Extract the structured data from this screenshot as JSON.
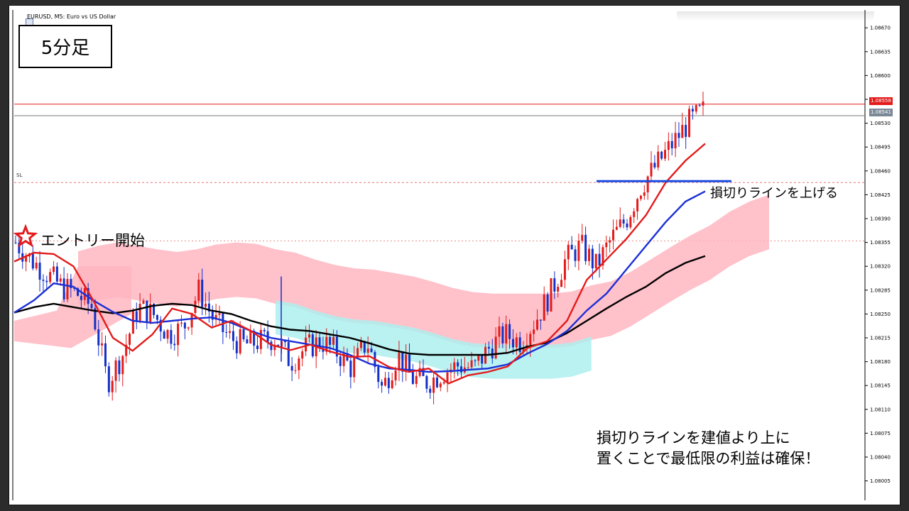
{
  "symbol_label": "EURUSD, M5:  Euro vs US Dollar",
  "timeframe_label": "5分足",
  "annotations": {
    "entry": "エントリー開始",
    "raise_stop": "損切りラインを上げる",
    "bottom_line1": "損切りラインを建値より上に",
    "bottom_line2": "置くことで最低限の利益は確保！"
  },
  "sl_label": "SL",
  "price_tags": {
    "ask": "1.08558",
    "bid": "1.08541"
  },
  "chart_data": {
    "type": "candlestick",
    "y_axis": {
      "ticks": [
        "1.08670",
        "1.08635",
        "1.08600",
        "1.08565",
        "1.08530",
        "1.08495",
        "1.08460",
        "1.08425",
        "1.08390",
        "1.08355",
        "1.08320",
        "1.08285",
        "1.08250",
        "1.08215",
        "1.08180",
        "1.08145",
        "1.08110",
        "1.08075",
        "1.08040",
        "1.08005"
      ],
      "ylim": [
        1.0799,
        1.0869
      ]
    },
    "levels": {
      "ask_line": 1.08558,
      "bid_line": 1.08541,
      "sl_line": 1.08443,
      "entry_line": 1.08357,
      "moved_stop": 1.08445
    },
    "colors": {
      "bull": "#e31b1b",
      "bear": "#1330c8",
      "ma_fast": "#e31b1b",
      "ma_mid": "#1a2fd6",
      "ma_slow": "#000000",
      "cloud_up": "#ffb6c1",
      "cloud_down": "#aeeeee",
      "stop_line": "#1a4be0"
    },
    "ma_fast": [
      1.08327,
      1.0834,
      1.08338,
      1.0832,
      1.0827,
      1.08215,
      1.08196,
      1.0822,
      1.08258,
      1.0825,
      1.0823,
      1.0824,
      1.08225,
      1.08205,
      1.08197,
      1.08205,
      1.08195,
      1.08187,
      1.08188,
      1.08172,
      1.08165,
      1.0817,
      1.08148,
      1.0816,
      1.08165,
      1.08173,
      1.082,
      1.0821,
      1.0824,
      1.083,
      1.0833,
      1.0836,
      1.08395,
      1.08443,
      1.08475,
      1.085
    ],
    "ma_mid": [
      1.08252,
      1.0827,
      1.08295,
      1.0829,
      1.0827,
      1.08253,
      1.0824,
      1.08237,
      1.0824,
      1.08243,
      1.08245,
      1.08237,
      1.08225,
      1.08215,
      1.0821,
      1.08205,
      1.082,
      1.0819,
      1.08177,
      1.0817,
      1.08168,
      1.08165,
      1.08166,
      1.08168,
      1.0817,
      1.08176,
      1.08192,
      1.08206,
      1.08225,
      1.08255,
      1.0828,
      1.08315,
      1.0835,
      1.08385,
      1.08415,
      1.0843
    ],
    "ma_slow": [
      1.08252,
      1.0826,
      1.08265,
      1.0826,
      1.08255,
      1.08251,
      1.08255,
      1.08262,
      1.08265,
      1.08263,
      1.08255,
      1.0825,
      1.0824,
      1.08232,
      1.08227,
      1.08225,
      1.0822,
      1.08215,
      1.08207,
      1.08198,
      1.08192,
      1.0819,
      1.0819,
      1.0819,
      1.0819,
      1.08193,
      1.08202,
      1.08208,
      1.08222,
      1.0824,
      1.08258,
      1.08275,
      1.0829,
      1.0831,
      1.08325,
      1.08335
    ],
    "price_path": [
      1.08355,
      1.0833,
      1.0831,
      1.0829,
      1.0828,
      1.0826,
      1.0815,
      1.0819,
      1.0826,
      1.0825,
      1.0822,
      1.0823,
      1.08285,
      1.0824,
      1.08215,
      1.08205,
      1.0821,
      1.08215,
      1.0818,
      1.082,
      1.0821,
      1.08195,
      1.0817,
      1.0821,
      1.0814,
      1.0819,
      1.08155,
      1.0815,
      1.08165,
      1.08175,
      1.0817,
      1.082,
      1.0822,
      1.0821,
      1.0824,
      1.0828,
      1.0833,
      1.0835,
      1.0832,
      1.0836,
      1.0839,
      1.0844,
      1.0847,
      1.085,
      1.0853,
      1.08548
    ]
  }
}
